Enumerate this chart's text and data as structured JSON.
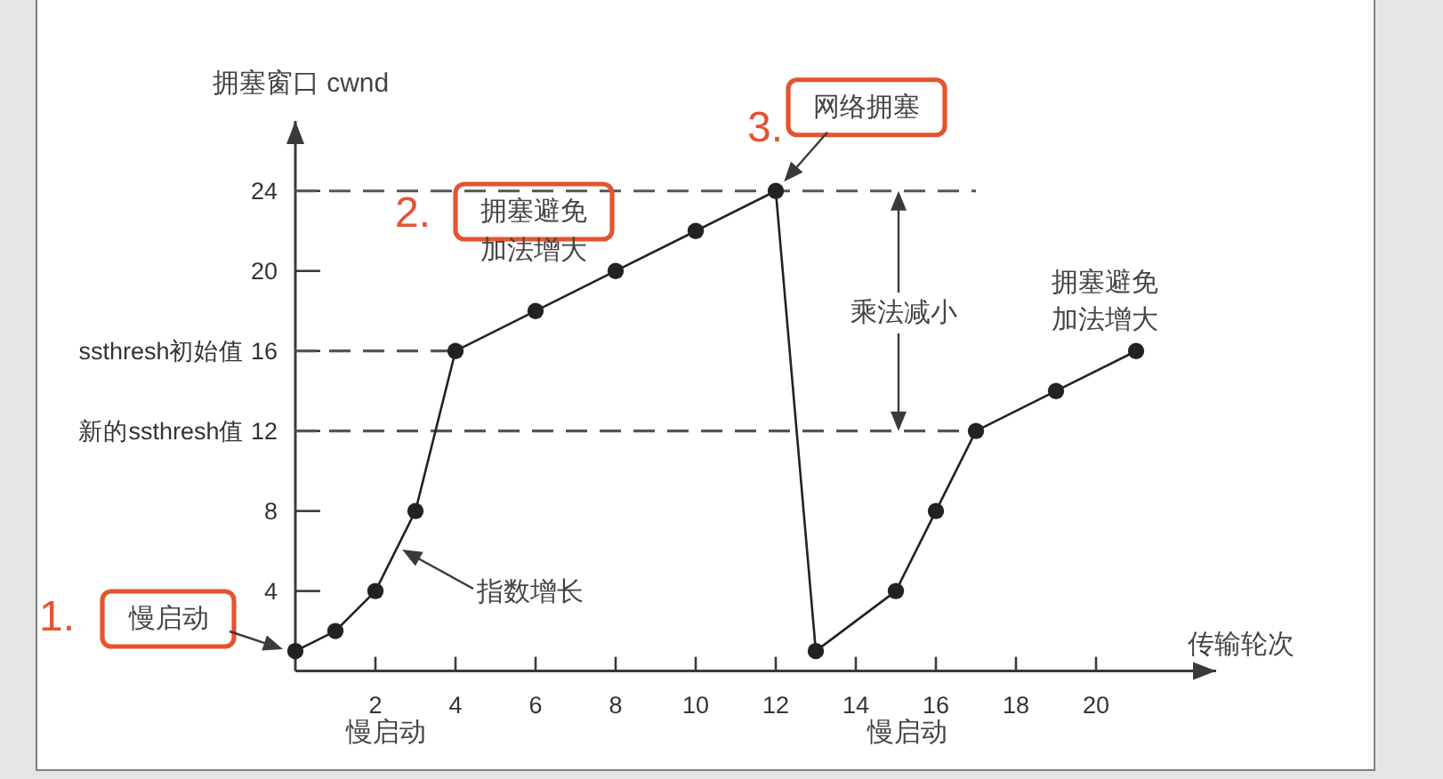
{
  "chart_data": {
    "type": "line",
    "xlabel": "传输轮次",
    "ylabel": "拥塞窗口 cwnd",
    "xlim": [
      0,
      23
    ],
    "ylim": [
      0,
      27.5
    ],
    "xticks": [
      2,
      4,
      6,
      8,
      10,
      12,
      14,
      16,
      18,
      20
    ],
    "yticks": [
      4,
      8,
      {
        "value": 12,
        "label": "新的ssthresh值 12"
      },
      {
        "value": 16,
        "label": "ssthresh初始值 16"
      },
      20,
      24
    ],
    "series": [
      {
        "x": [
          0,
          17
        ],
        "values": [
          24,
          24
        ],
        "color": "#555555",
        "line_style": "dashed",
        "marker": "none"
      },
      {
        "x": [
          0,
          4
        ],
        "values": [
          16,
          16
        ],
        "color": "#555555",
        "line_style": "dashed",
        "marker": "none"
      },
      {
        "x": [
          0,
          17
        ],
        "values": [
          12,
          12
        ],
        "color": "#555555",
        "line_style": "dashed",
        "marker": "none"
      },
      {
        "x": [
          0,
          1,
          2,
          3,
          4,
          6,
          8,
          10,
          12,
          13,
          15,
          16,
          17,
          19,
          21
        ],
        "values": [
          1,
          2,
          4,
          8,
          16,
          18,
          20,
          22,
          24,
          1,
          4,
          8,
          12,
          14,
          16
        ],
        "color": "#222222",
        "marker": "circle"
      }
    ],
    "annotations": [
      "1.",
      "慢启动",
      "2.",
      "拥塞避免",
      "加法增大",
      "3.",
      {
        "text": "网络拥塞",
        "x": 12,
        "y": 24
      },
      "指数增长",
      "乘法减小",
      "拥塞避免",
      "加法增大",
      "慢启动",
      "慢启动"
    ]
  }
}
